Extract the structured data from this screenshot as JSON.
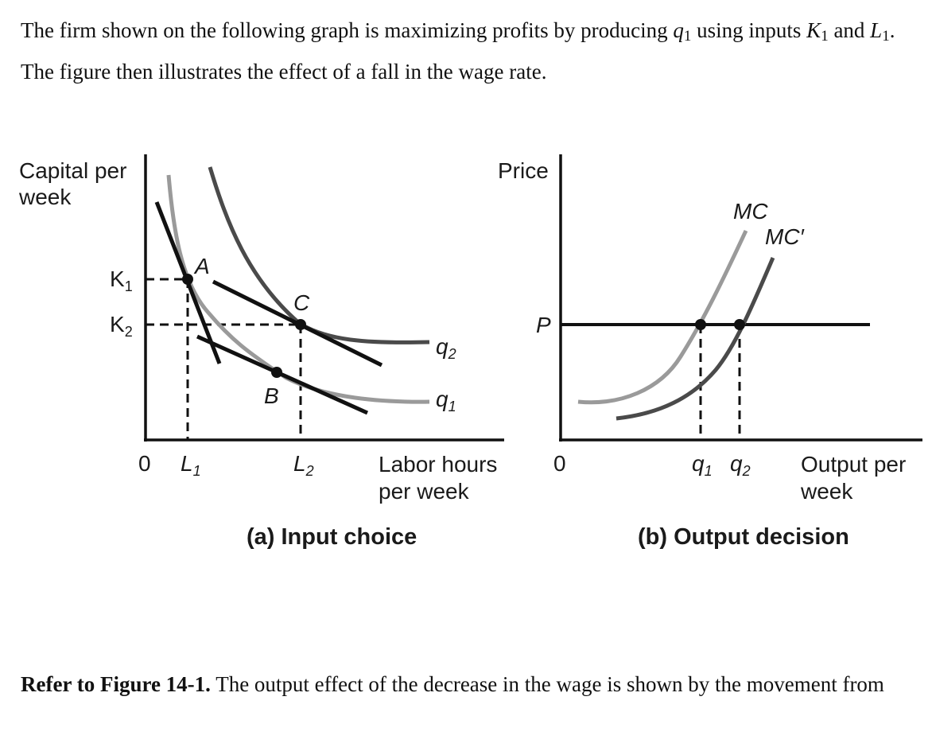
{
  "intro": {
    "part1": "The firm shown on the following graph is maximizing profits by producing ",
    "q1_var": "q",
    "q1_sub": "1",
    "part2": " using inputs ",
    "k1_var": "K",
    "k1_sub": "1",
    "part3": " and ",
    "l1_var": "L",
    "l1_sub": "1",
    "part4": ". The figure then illustrates the effect of a fall in the wage rate."
  },
  "figure": {
    "panel_a": {
      "y_axis_label_line1": "Capital per",
      "y_axis_label_line2": "week",
      "x_axis_label_line1": "Labor hours",
      "x_axis_label_line2": "per week",
      "origin": "0",
      "tick_K1": "K",
      "tick_K1_sub": "1",
      "tick_K2": "K",
      "tick_K2_sub": "2",
      "tick_L1": "L",
      "tick_L1_sub": "1",
      "tick_L2": "L",
      "tick_L2_sub": "2",
      "point_A": "A",
      "point_B": "B",
      "point_C": "C",
      "isoquant_q1": "q",
      "isoquant_q1_sub": "1",
      "isoquant_q2": "q",
      "isoquant_q2_sub": "2",
      "caption": "(a) Input choice"
    },
    "panel_b": {
      "y_axis_label": "Price",
      "x_axis_label_line1": "Output per",
      "x_axis_label_line2": "week",
      "origin": "0",
      "price_label": "P",
      "mc_label": "MC",
      "mc_prime_label": "MC′",
      "tick_q1": "q",
      "tick_q1_sub": "1",
      "tick_q2": "q",
      "tick_q2_sub": "2",
      "caption": "(b) Output decision"
    },
    "colors": {
      "dark_curve": "#4a4a4a",
      "light_curve": "#9a9a9a",
      "line": "#111111"
    }
  },
  "question": {
    "ref": "Refer to Figure 14-1.",
    "text": " The output effect of the decrease in the wage is shown by the movement from"
  }
}
